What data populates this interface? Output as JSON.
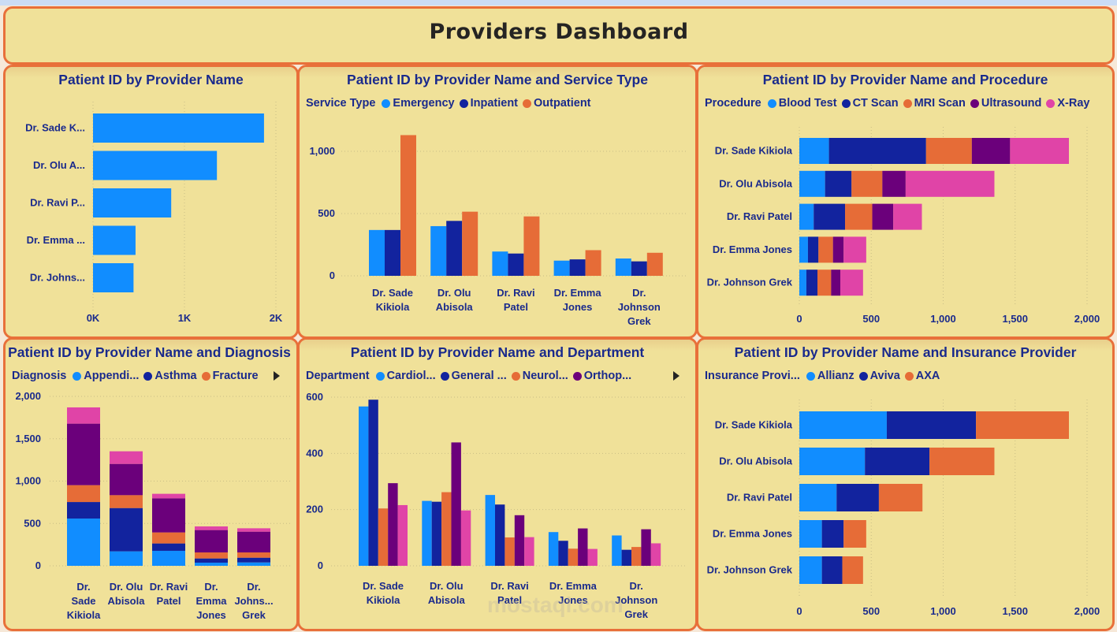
{
  "header": {
    "title": "Providers Dashboard"
  },
  "colors": {
    "blue": "#118DFF",
    "dark_blue": "#12239E",
    "orange": "#E66C37",
    "purple": "#6B007B",
    "pink": "#E044A7",
    "panel_bg": "#F0E199",
    "panel_border": "#E8703A",
    "text": "#1A2A8C"
  },
  "watermark": "mostaql.com",
  "chart_data": [
    {
      "id": "by_provider",
      "type": "bar",
      "orientation": "horizontal",
      "title": "Patient ID by Provider Name",
      "categories": [
        "Dr. Sade K...",
        "Dr. Olu A...",
        "Dr. Ravi P...",
        "Dr. Emma ...",
        "Dr. Johns..."
      ],
      "values": [
        1870,
        1355,
        855,
        465,
        443
      ],
      "xticks": [
        "0K",
        "1K",
        "2K"
      ],
      "xlim": [
        0,
        2000
      ],
      "grid": true
    },
    {
      "id": "by_service",
      "type": "bar",
      "orientation": "vertical",
      "stacked": false,
      "title": "Patient ID by Provider Name and Service Type",
      "legend_title": "Service Type",
      "categories": [
        [
          "Dr. Sade",
          "Kikiola"
        ],
        [
          "Dr. Olu",
          "Abisola"
        ],
        [
          "Dr. Ravi",
          "Patel"
        ],
        [
          "Dr. Emma",
          "Jones"
        ],
        [
          "Dr.",
          "Johnson",
          "Grek"
        ]
      ],
      "series": [
        {
          "name": "Emergency",
          "color": "#118DFF",
          "values": [
            368,
            399,
            195,
            122,
            139
          ]
        },
        {
          "name": "Inpatient",
          "color": "#12239E",
          "values": [
            368,
            441,
            179,
            132,
            116
          ]
        },
        {
          "name": "Outpatient",
          "color": "#E66C37",
          "values": [
            1130,
            515,
            477,
            206,
            185
          ]
        }
      ],
      "yticks": [
        "0",
        "500",
        "1,000"
      ],
      "ylim": [
        0,
        1150
      ],
      "grid": true
    },
    {
      "id": "by_procedure",
      "type": "bar",
      "orientation": "horizontal",
      "stacked": true,
      "title": "Patient ID by Provider Name and Procedure",
      "legend_title": "Procedure",
      "categories": [
        "Dr. Sade Kikiola",
        "Dr. Olu Abisola",
        "Dr. Ravi Patel",
        "Dr. Emma Jones",
        "Dr. Johnson Grek"
      ],
      "series": [
        {
          "name": "Blood Test",
          "color": "#118DFF",
          "values": [
            206,
            179,
            100,
            60,
            49
          ]
        },
        {
          "name": "CT Scan",
          "color": "#12239E",
          "values": [
            675,
            184,
            218,
            73,
            77
          ]
        },
        {
          "name": "MRI Scan",
          "color": "#E66C37",
          "values": [
            318,
            214,
            189,
            101,
            95
          ]
        },
        {
          "name": "Ultrasound",
          "color": "#6B007B",
          "values": [
            266,
            162,
            146,
            74,
            64
          ]
        },
        {
          "name": "X-Ray",
          "color": "#E044A7",
          "values": [
            409,
            617,
            199,
            157,
            158
          ]
        }
      ],
      "xticks": [
        "0",
        "500",
        "1,000",
        "1,500",
        "2,000"
      ],
      "xlim": [
        0,
        2000
      ],
      "grid": true
    },
    {
      "id": "by_diagnosis",
      "type": "bar",
      "orientation": "vertical",
      "stacked": true,
      "title": "Patient ID by Provider Name and Diagnosis",
      "legend_title": "Diagnosis",
      "legend_has_more": true,
      "categories": [
        [
          "Dr.",
          "Sade",
          "Kikiola"
        ],
        [
          "Dr. Olu",
          "Abisola"
        ],
        [
          "Dr. Ravi",
          "Patel"
        ],
        [
          "Dr.",
          "Emma",
          "Jones"
        ],
        [
          "Dr.",
          "Johns...",
          "Grek"
        ]
      ],
      "series": [
        {
          "name": "Appendi...",
          "color": "#118DFF",
          "values": [
            558,
            171,
            177,
            37,
            40
          ]
        },
        {
          "name": "Asthma",
          "color": "#12239E",
          "values": [
            195,
            511,
            87,
            50,
            56
          ]
        },
        {
          "name": "Fracture",
          "color": "#E66C37",
          "values": [
            199,
            152,
            130,
            71,
            62
          ]
        },
        {
          "name": "",
          "color": "#6B007B",
          "values": [
            726,
            369,
            403,
            264,
            245
          ]
        },
        {
          "name": "",
          "color": "#E044A7",
          "values": [
            192,
            149,
            53,
            43,
            40
          ]
        }
      ],
      "yticks": [
        "0",
        "500",
        "1,000",
        "1,500",
        "2,000"
      ],
      "ylim": [
        0,
        2000
      ],
      "grid": true
    },
    {
      "id": "by_department",
      "type": "bar",
      "orientation": "vertical",
      "stacked": false,
      "title": "Patient ID by Provider Name and Department",
      "legend_title": "Department",
      "legend_has_more": true,
      "categories": [
        [
          "Dr. Sade",
          "Kikiola"
        ],
        [
          "Dr. Olu",
          "Abisola"
        ],
        [
          "Dr. Ravi",
          "Patel"
        ],
        [
          "Dr. Emma",
          "Jones"
        ],
        [
          "Dr.",
          "Johnson",
          "Grek"
        ]
      ],
      "series": [
        {
          "name": "Cardiol...",
          "color": "#118DFF",
          "values": [
            567,
            231,
            252,
            120,
            108
          ]
        },
        {
          "name": "General ...",
          "color": "#12239E",
          "values": [
            591,
            228,
            218,
            89,
            57
          ]
        },
        {
          "name": "Neurol...",
          "color": "#E66C37",
          "values": [
            204,
            262,
            101,
            61,
            67
          ]
        },
        {
          "name": "Orthop...",
          "color": "#6B007B",
          "values": [
            294,
            439,
            180,
            133,
            130
          ]
        },
        {
          "name": "",
          "color": "#E044A7",
          "values": [
            216,
            197,
            102,
            60,
            80
          ]
        }
      ],
      "yticks": [
        "0",
        "200",
        "400",
        "600"
      ],
      "ylim": [
        0,
        600
      ],
      "grid": true
    },
    {
      "id": "by_insurance",
      "type": "bar",
      "orientation": "horizontal",
      "stacked": true,
      "title": "Patient ID by Provider Name and Insurance Provider",
      "legend_title": "Insurance Provi...",
      "categories": [
        "Dr. Sade Kikiola",
        "Dr. Olu Abisola",
        "Dr. Ravi Patel",
        "Dr. Emma Jones",
        "Dr. Johnson Grek"
      ],
      "series": [
        {
          "name": "Allianz",
          "color": "#118DFF",
          "values": [
            608,
            456,
            259,
            157,
            157
          ]
        },
        {
          "name": "Aviva",
          "color": "#12239E",
          "values": [
            620,
            449,
            294,
            151,
            142
          ]
        },
        {
          "name": "AXA",
          "color": "#E66C37",
          "values": [
            646,
            451,
            303,
            157,
            144
          ]
        }
      ],
      "xticks": [
        "0",
        "500",
        "1,000",
        "1,500",
        "2,000"
      ],
      "xlim": [
        0,
        2000
      ],
      "grid": true
    }
  ]
}
